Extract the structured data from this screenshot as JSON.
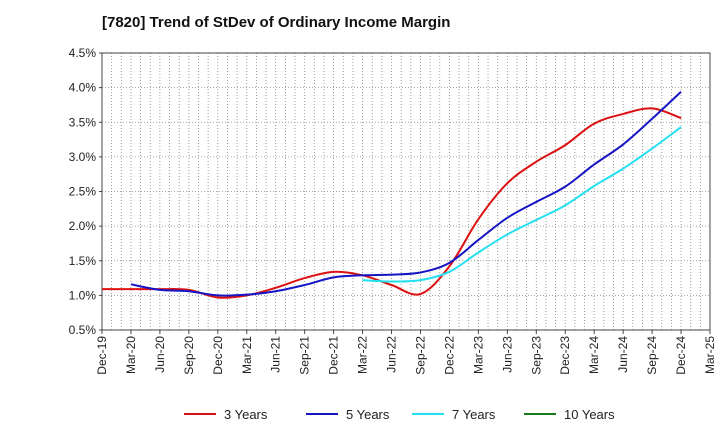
{
  "chart_data": {
    "type": "line",
    "title": "[7820]  Trend of StDev of Ordinary Income Margin",
    "xlabel": "",
    "ylabel": "",
    "ylim": [
      0.5,
      4.5
    ],
    "yticks": [
      "0.5%",
      "1.0%",
      "1.5%",
      "2.0%",
      "2.5%",
      "3.0%",
      "3.5%",
      "4.0%",
      "4.5%"
    ],
    "ytick_values": [
      0.5,
      1.0,
      1.5,
      2.0,
      2.5,
      3.0,
      3.5,
      4.0,
      4.5
    ],
    "xticks": [
      "Dec-19",
      "Mar-20",
      "Jun-20",
      "Sep-20",
      "Dec-20",
      "Mar-21",
      "Jun-21",
      "Sep-21",
      "Dec-21",
      "Mar-22",
      "Jun-22",
      "Sep-22",
      "Dec-22",
      "Mar-23",
      "Jun-23",
      "Sep-23",
      "Dec-23",
      "Mar-24",
      "Jun-24",
      "Sep-24",
      "Dec-24",
      "Mar-25"
    ],
    "grid": true,
    "legend_position": "bottom",
    "series": [
      {
        "name": "3 Years",
        "color": "#dd1111",
        "points": [
          [
            "Dec-19",
            1.09
          ],
          [
            "Mar-20",
            1.09
          ],
          [
            "Jun-20",
            1.09
          ],
          [
            "Sep-20",
            1.08
          ],
          [
            "Dec-20",
            0.97
          ],
          [
            "Mar-21",
            1.0
          ],
          [
            "Jun-21",
            1.11
          ],
          [
            "Sep-21",
            1.25
          ],
          [
            "Dec-21",
            1.34
          ],
          [
            "Mar-22",
            1.29
          ],
          [
            "Jun-22",
            1.15
          ],
          [
            "Sep-22",
            1.02
          ],
          [
            "Dec-22",
            1.42
          ],
          [
            "Mar-23",
            2.1
          ],
          [
            "Jun-23",
            2.62
          ],
          [
            "Sep-23",
            2.93
          ],
          [
            "Dec-23",
            3.17
          ],
          [
            "Mar-24",
            3.48
          ],
          [
            "Jun-24",
            3.62
          ],
          [
            "Sep-24",
            3.7
          ],
          [
            "Dec-24",
            3.56
          ]
        ]
      },
      {
        "name": "5 Years",
        "color": "#1515c4",
        "points": [
          [
            "Mar-20",
            1.16
          ],
          [
            "Jun-20",
            1.08
          ],
          [
            "Sep-20",
            1.06
          ],
          [
            "Dec-20",
            1.0
          ],
          [
            "Mar-21",
            1.01
          ],
          [
            "Jun-21",
            1.06
          ],
          [
            "Sep-21",
            1.15
          ],
          [
            "Dec-21",
            1.26
          ],
          [
            "Mar-22",
            1.29
          ],
          [
            "Jun-22",
            1.3
          ],
          [
            "Sep-22",
            1.33
          ],
          [
            "Dec-22",
            1.47
          ],
          [
            "Mar-23",
            1.8
          ],
          [
            "Jun-23",
            2.12
          ],
          [
            "Sep-23",
            2.35
          ],
          [
            "Dec-23",
            2.57
          ],
          [
            "Mar-24",
            2.89
          ],
          [
            "Jun-24",
            3.18
          ],
          [
            "Sep-24",
            3.55
          ],
          [
            "Dec-24",
            3.94
          ]
        ]
      },
      {
        "name": "7 Years",
        "color": "#22e0f0",
        "points": [
          [
            "Mar-22",
            1.22
          ],
          [
            "Jun-22",
            1.2
          ],
          [
            "Sep-22",
            1.22
          ],
          [
            "Dec-22",
            1.34
          ],
          [
            "Mar-23",
            1.62
          ],
          [
            "Jun-23",
            1.88
          ],
          [
            "Sep-23",
            2.09
          ],
          [
            "Dec-23",
            2.3
          ],
          [
            "Mar-24",
            2.58
          ],
          [
            "Jun-24",
            2.83
          ],
          [
            "Sep-24",
            3.12
          ],
          [
            "Dec-24",
            3.43
          ]
        ]
      },
      {
        "name": "10 Years",
        "color": "#1a7a1a",
        "points": []
      }
    ]
  }
}
